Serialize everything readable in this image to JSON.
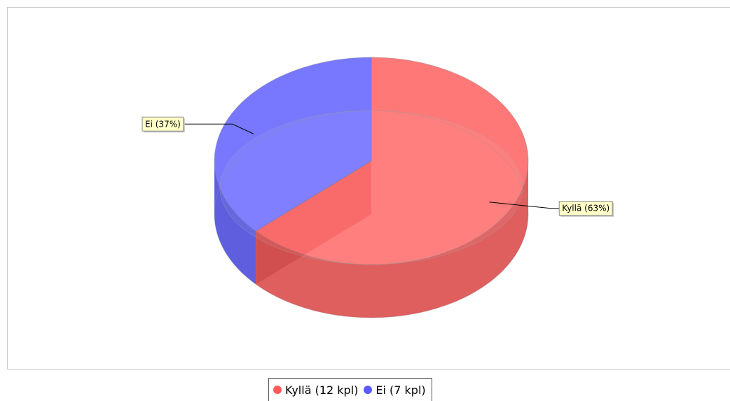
{
  "chart_data": {
    "type": "pie",
    "style": "3d",
    "title": "",
    "slices": [
      {
        "label": "Kyllä (63%)",
        "legend": "Kyllä (12 kpl)",
        "value": 12,
        "percent": 63,
        "color": "#ff5a5a"
      },
      {
        "label": "Ei (37%)",
        "legend": "Ei (7 kpl)",
        "value": 7,
        "percent": 37,
        "color": "#5a5aff"
      }
    ],
    "legend_position": "bottom"
  }
}
